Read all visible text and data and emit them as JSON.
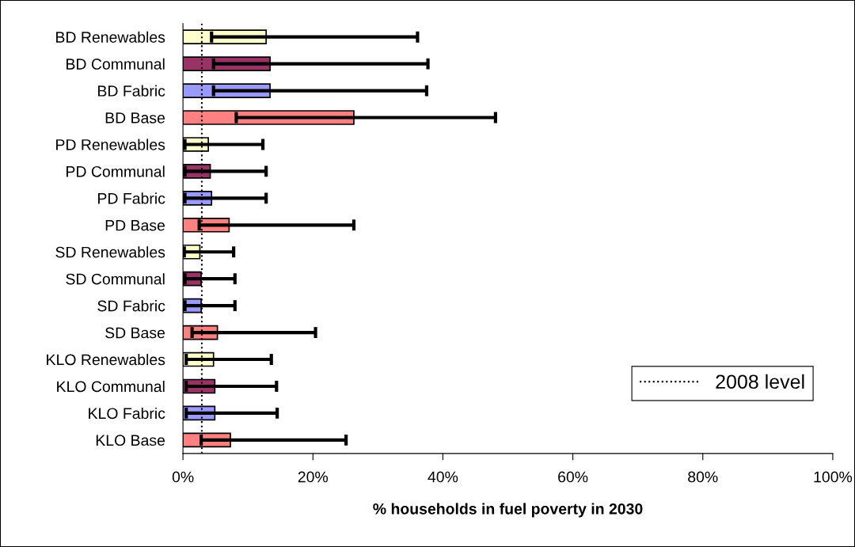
{
  "chart_data": {
    "type": "bar",
    "orientation": "horizontal",
    "categories": [
      "BD Renewables",
      "BD Communal",
      "BD Fabric",
      "BD Base",
      "PD Renewables",
      "PD Communal",
      "PD Fabric",
      "PD Base",
      "SD Renewables",
      "SD Communal",
      "SD Fabric",
      "SD Base",
      "KLO Renewables",
      "KLO Communal",
      "KLO Fabric",
      "KLO Base"
    ],
    "values": [
      12.8,
      13.4,
      13.4,
      26.3,
      3.9,
      4.2,
      4.4,
      7.1,
      2.6,
      2.8,
      2.8,
      5.3,
      4.7,
      4.9,
      4.9,
      7.3
    ],
    "errors": [
      [
        4.4,
        36.1
      ],
      [
        4.7,
        37.7
      ],
      [
        4.7,
        37.5
      ],
      [
        8.2,
        48.1
      ],
      [
        0.3,
        12.3
      ],
      [
        0.3,
        12.8
      ],
      [
        0.3,
        12.8
      ],
      [
        2.5,
        26.3
      ],
      [
        0.2,
        7.8
      ],
      [
        0.3,
        8.0
      ],
      [
        0.3,
        8.0
      ],
      [
        1.4,
        20.4
      ],
      [
        0.5,
        13.6
      ],
      [
        0.5,
        14.4
      ],
      [
        0.5,
        14.5
      ],
      [
        2.8,
        25.1
      ]
    ],
    "colors": [
      "#ffffcc",
      "#993366",
      "#9999ff",
      "#ff8080",
      "#ffffcc",
      "#993366",
      "#9999ff",
      "#ff8080",
      "#ffffcc",
      "#993366",
      "#9999ff",
      "#ff8080",
      "#ffffcc",
      "#993366",
      "#9999ff",
      "#ff8080"
    ],
    "xlim": [
      0,
      100
    ],
    "xticks": [
      {
        "value": 0,
        "label": "0%"
      },
      {
        "value": 20,
        "label": "20%"
      },
      {
        "value": 40,
        "label": "40%"
      },
      {
        "value": 60,
        "label": "60%"
      },
      {
        "value": 80,
        "label": "80%"
      },
      {
        "value": 100,
        "label": "100%"
      }
    ],
    "xlabel": "% households in fuel poverty in 2030",
    "ref_lines": [
      {
        "axis": "x",
        "value": 2.9,
        "label": "2008 level",
        "color": "#000000",
        "line_style": "dotted"
      }
    ],
    "legend": "bottom right",
    "grid": false
  }
}
